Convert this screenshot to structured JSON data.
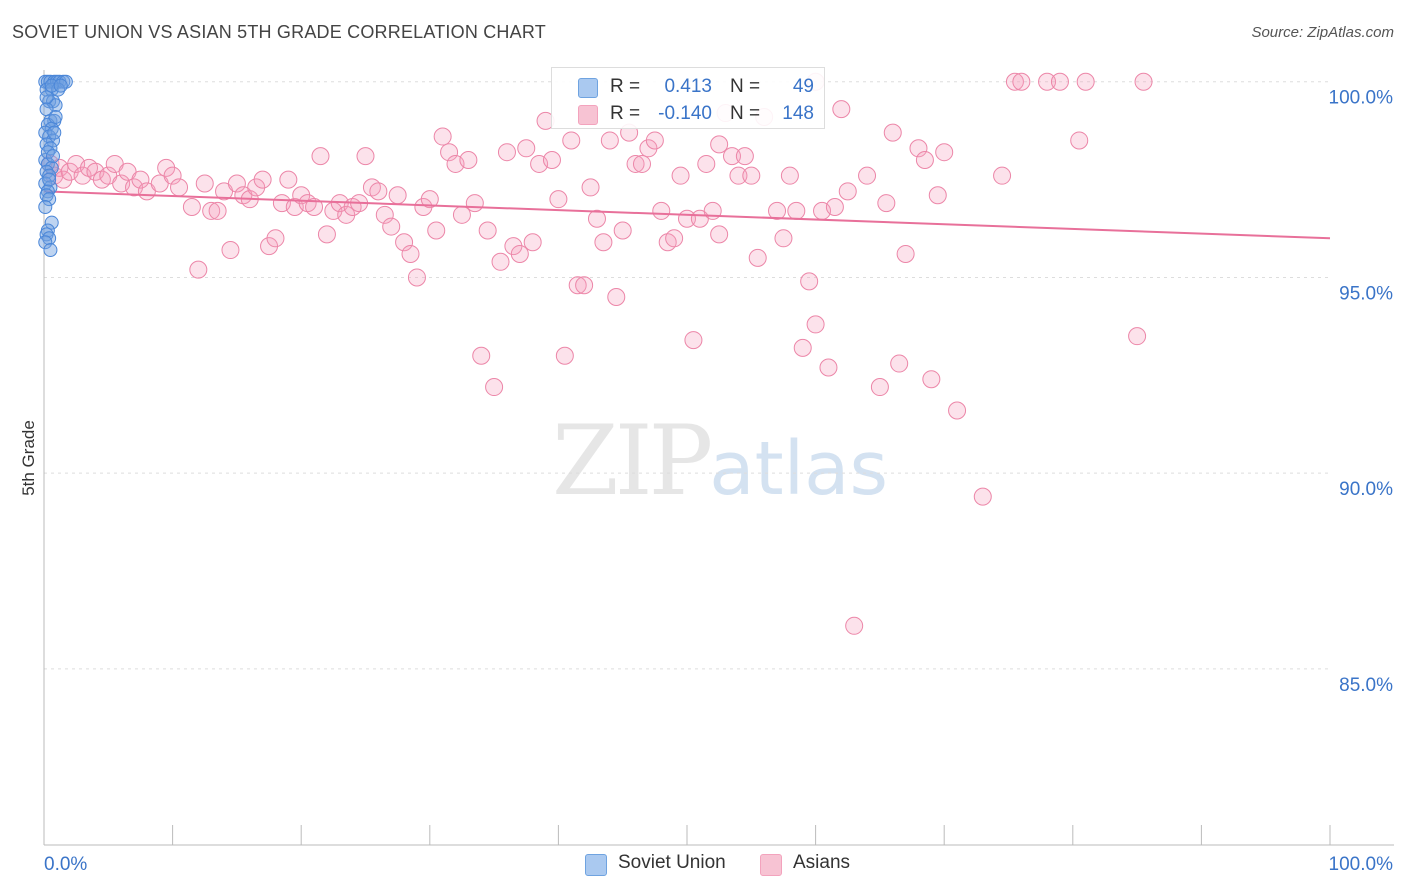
{
  "title": "SOVIET UNION VS ASIAN 5TH GRADE CORRELATION CHART",
  "source": "Source: ZipAtlas.com",
  "watermark": {
    "zip": "ZIP",
    "atlas": "atlas"
  },
  "legend": {
    "rows": [
      {
        "r_label": "R =",
        "r_value": "0.413",
        "n_label": "N =",
        "n_value": "49",
        "color": "#6fa3e0"
      },
      {
        "r_label": "R =",
        "r_value": "-0.140",
        "n_label": "N =",
        "n_value": "148",
        "color": "#f3a3bd"
      }
    ]
  },
  "bottom_legend": [
    {
      "label": "Soviet Union",
      "color": "#aac9f0"
    },
    {
      "label": "Asians",
      "color": "#f7c3d3"
    }
  ],
  "colors": {
    "soviet_fill": "rgba(110,160,225,0.45)",
    "soviet_stroke": "#4a86d8",
    "asian_fill": "rgba(245,160,190,0.30)",
    "asian_stroke": "#ec86a8",
    "trend_asian": "#e8709a",
    "axis_label": "#3a74c8",
    "grid": "#dddddd"
  },
  "chart_data": {
    "type": "scatter",
    "title": "SOVIET UNION VS ASIAN 5TH GRADE CORRELATION CHART",
    "xlabel": "",
    "ylabel": "5th Grade",
    "x_tick_labels": [
      "0.0%",
      "100.0%"
    ],
    "y_tick_labels": [
      "100.0%",
      "95.0%",
      "90.0%",
      "85.0%"
    ],
    "y_ticks": [
      100,
      95,
      90,
      85
    ],
    "xlim": [
      0,
      100
    ],
    "ylim": [
      80.5,
      100.3
    ],
    "grid": true,
    "legend_placement": "top-center",
    "series": [
      {
        "name": "Soviet Union",
        "points": [
          [
            0.1,
            100
          ],
          [
            0.3,
            100
          ],
          [
            0.5,
            100
          ],
          [
            0.8,
            100
          ],
          [
            1.0,
            100
          ],
          [
            1.2,
            100
          ],
          [
            1.5,
            100
          ],
          [
            1.7,
            100
          ],
          [
            0.2,
            99.8
          ],
          [
            0.6,
            99.8
          ],
          [
            1.1,
            99.8
          ],
          [
            0.4,
            99.5
          ],
          [
            0.7,
            99.5
          ],
          [
            0.9,
            99.4
          ],
          [
            0.2,
            99.3
          ],
          [
            0.5,
            99.0
          ],
          [
            0.8,
            99.0
          ],
          [
            0.3,
            98.9
          ],
          [
            0.6,
            98.8
          ],
          [
            0.1,
            98.7
          ],
          [
            0.4,
            98.6
          ],
          [
            0.7,
            98.5
          ],
          [
            0.2,
            98.4
          ],
          [
            0.5,
            98.3
          ],
          [
            0.1,
            98.0
          ],
          [
            0.3,
            97.9
          ],
          [
            0.6,
            97.8
          ],
          [
            0.2,
            97.7
          ],
          [
            0.4,
            97.6
          ],
          [
            0.1,
            97.4
          ],
          [
            0.5,
            97.3
          ],
          [
            0.3,
            97.2
          ],
          [
            0.2,
            97.1
          ],
          [
            0.4,
            97.0
          ],
          [
            0.1,
            96.8
          ],
          [
            0.6,
            96.4
          ],
          [
            0.3,
            96.2
          ],
          [
            0.2,
            96.1
          ],
          [
            0.4,
            96.0
          ],
          [
            0.1,
            95.9
          ],
          [
            0.5,
            95.7
          ],
          [
            0.3,
            98.2
          ],
          [
            0.7,
            98.1
          ],
          [
            0.9,
            99.1
          ],
          [
            0.2,
            99.6
          ],
          [
            0.6,
            99.9
          ],
          [
            1.3,
            99.9
          ],
          [
            0.8,
            98.7
          ],
          [
            0.4,
            97.5
          ]
        ]
      },
      {
        "name": "Asians",
        "points": [
          [
            0.5,
            97.9
          ],
          [
            0.8,
            97.6
          ],
          [
            1.2,
            97.8
          ],
          [
            1.5,
            97.5
          ],
          [
            2.0,
            97.7
          ],
          [
            2.5,
            97.9
          ],
          [
            3.0,
            97.6
          ],
          [
            3.5,
            97.8
          ],
          [
            4.0,
            97.7
          ],
          [
            4.5,
            97.5
          ],
          [
            5.0,
            97.6
          ],
          [
            5.5,
            97.9
          ],
          [
            6.0,
            97.4
          ],
          [
            6.5,
            97.7
          ],
          [
            7.0,
            97.3
          ],
          [
            7.5,
            97.5
          ],
          [
            8.0,
            97.2
          ],
          [
            9.0,
            97.4
          ],
          [
            9.5,
            97.8
          ],
          [
            10.0,
            97.6
          ],
          [
            10.5,
            97.3
          ],
          [
            11.5,
            96.8
          ],
          [
            12.0,
            95.2
          ],
          [
            12.5,
            97.4
          ],
          [
            13.0,
            96.7
          ],
          [
            13.5,
            96.7
          ],
          [
            14.0,
            97.2
          ],
          [
            14.5,
            95.7
          ],
          [
            15.0,
            97.4
          ],
          [
            15.5,
            97.1
          ],
          [
            16.0,
            97.0
          ],
          [
            16.5,
            97.3
          ],
          [
            17.0,
            97.5
          ],
          [
            17.5,
            95.8
          ],
          [
            18.0,
            96.0
          ],
          [
            18.5,
            96.9
          ],
          [
            19.0,
            97.5
          ],
          [
            19.5,
            96.8
          ],
          [
            20.0,
            97.1
          ],
          [
            20.5,
            96.9
          ],
          [
            21.0,
            96.8
          ],
          [
            21.5,
            98.1
          ],
          [
            22.0,
            96.1
          ],
          [
            22.5,
            96.7
          ],
          [
            23.0,
            96.9
          ],
          [
            23.5,
            96.6
          ],
          [
            24.0,
            96.8
          ],
          [
            24.5,
            96.9
          ],
          [
            25.0,
            98.1
          ],
          [
            25.5,
            97.3
          ],
          [
            26.0,
            97.2
          ],
          [
            26.5,
            96.6
          ],
          [
            27.0,
            96.3
          ],
          [
            27.5,
            97.1
          ],
          [
            28.0,
            95.9
          ],
          [
            28.5,
            95.6
          ],
          [
            29.0,
            95.0
          ],
          [
            29.5,
            96.8
          ],
          [
            30.0,
            97.0
          ],
          [
            30.5,
            96.2
          ],
          [
            31.0,
            98.6
          ],
          [
            31.5,
            98.2
          ],
          [
            32.0,
            97.9
          ],
          [
            32.5,
            96.6
          ],
          [
            33.0,
            98.0
          ],
          [
            33.5,
            96.9
          ],
          [
            34.0,
            93.0
          ],
          [
            34.5,
            96.2
          ],
          [
            35.0,
            92.2
          ],
          [
            35.5,
            95.4
          ],
          [
            36.0,
            98.2
          ],
          [
            36.5,
            95.8
          ],
          [
            37.0,
            95.6
          ],
          [
            37.5,
            98.3
          ],
          [
            38.0,
            95.9
          ],
          [
            38.5,
            97.9
          ],
          [
            39.0,
            99.0
          ],
          [
            39.5,
            98.0
          ],
          [
            40.0,
            97.0
          ],
          [
            40.5,
            93.0
          ],
          [
            41.0,
            98.5
          ],
          [
            41.5,
            94.8
          ],
          [
            42.0,
            94.8
          ],
          [
            42.5,
            97.3
          ],
          [
            43.0,
            96.5
          ],
          [
            43.5,
            95.9
          ],
          [
            44.0,
            98.5
          ],
          [
            44.5,
            94.5
          ],
          [
            45.0,
            96.2
          ],
          [
            45.5,
            98.7
          ],
          [
            46.0,
            97.9
          ],
          [
            46.5,
            97.9
          ],
          [
            47.0,
            98.3
          ],
          [
            47.5,
            98.5
          ],
          [
            48.0,
            96.7
          ],
          [
            48.5,
            95.9
          ],
          [
            49.0,
            96.0
          ],
          [
            49.5,
            97.6
          ],
          [
            50.0,
            96.5
          ],
          [
            50.5,
            93.4
          ],
          [
            51.0,
            96.5
          ],
          [
            51.5,
            97.9
          ],
          [
            52.0,
            96.7
          ],
          [
            52.5,
            96.1
          ],
          [
            53.0,
            99.2
          ],
          [
            53.5,
            98.1
          ],
          [
            54.0,
            97.6
          ],
          [
            54.5,
            98.1
          ],
          [
            55.0,
            97.6
          ],
          [
            55.5,
            95.5
          ],
          [
            56.0,
            99.1
          ],
          [
            57.0,
            96.7
          ],
          [
            57.5,
            96.0
          ],
          [
            58.0,
            97.6
          ],
          [
            58.5,
            96.7
          ],
          [
            59.0,
            93.2
          ],
          [
            59.5,
            94.9
          ],
          [
            60.0,
            93.8
          ],
          [
            60.5,
            96.7
          ],
          [
            61.0,
            92.7
          ],
          [
            61.5,
            96.8
          ],
          [
            62.0,
            99.3
          ],
          [
            62.5,
            97.2
          ],
          [
            63.0,
            86.1
          ],
          [
            64.0,
            97.6
          ],
          [
            65.0,
            92.2
          ],
          [
            65.5,
            96.9
          ],
          [
            66.0,
            98.7
          ],
          [
            66.5,
            92.8
          ],
          [
            67.0,
            95.6
          ],
          [
            68.0,
            98.3
          ],
          [
            68.5,
            98.0
          ],
          [
            69.0,
            92.4
          ],
          [
            69.5,
            97.1
          ],
          [
            70.0,
            98.2
          ],
          [
            71.0,
            91.6
          ],
          [
            73.0,
            89.4
          ],
          [
            74.5,
            97.6
          ],
          [
            75.5,
            100
          ],
          [
            78.0,
            100
          ],
          [
            79.0,
            100
          ],
          [
            80.5,
            98.5
          ],
          [
            81.0,
            100
          ],
          [
            85.5,
            100
          ],
          [
            85.0,
            93.5
          ],
          [
            76.0,
            100
          ],
          [
            60.0,
            100
          ],
          [
            52.5,
            98.4
          ]
        ]
      }
    ],
    "trend_lines": [
      {
        "series": "Asians",
        "x": [
          0,
          100
        ],
        "y": [
          97.2,
          96.0
        ]
      }
    ]
  }
}
